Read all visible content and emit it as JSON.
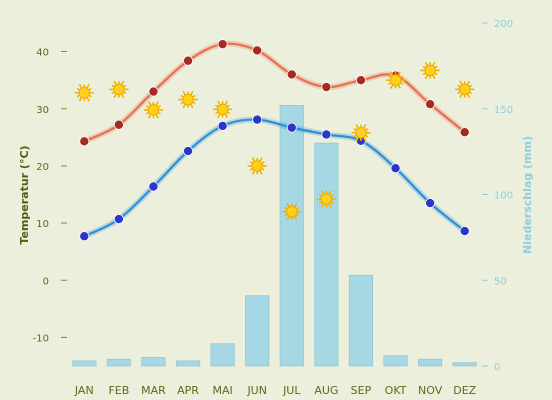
{
  "chart_data": {
    "type": "bar+line",
    "categories": [
      "JAN",
      "FEB",
      "MAR",
      "APR",
      "MAI",
      "JUN",
      "JUL",
      "AUG",
      "SEP",
      "OKT",
      "NOV",
      "DEZ"
    ],
    "y_left": {
      "label": "Temperatur (°C)",
      "ticks": [
        -10,
        0,
        10,
        20,
        30,
        40
      ],
      "range": [
        -15,
        45
      ]
    },
    "y_right": {
      "label": "Niederschlag (mm)",
      "ticks": [
        0,
        50,
        100,
        150,
        200
      ],
      "range": [
        0,
        200
      ]
    },
    "series": [
      {
        "kind": "line",
        "axis": "left",
        "color": "#e8704f",
        "marker": "#a52a24",
        "values": [
          24.3,
          27.2,
          33.0,
          38.4,
          41.3,
          40.2,
          36.0,
          33.8,
          35.0,
          35.8,
          30.8,
          25.9
        ]
      },
      {
        "kind": "line",
        "axis": "left",
        "color": "#2f8fd6",
        "marker": "#2b35c9",
        "values": [
          7.7,
          10.7,
          16.4,
          22.6,
          27.0,
          28.1,
          26.7,
          25.5,
          24.4,
          19.6,
          13.5,
          8.6
        ]
      },
      {
        "kind": "bar",
        "axis": "right",
        "color": "#a6d7e4",
        "values": [
          3,
          4,
          5,
          3,
          13,
          41,
          152,
          130,
          53,
          6,
          4,
          2
        ]
      }
    ],
    "sun_icons": {
      "axis": "left",
      "icon": "sun-icon",
      "values": [
        32.8,
        33.4,
        29.8,
        31.6,
        29.9,
        20.0,
        12.0,
        14.2,
        25.8,
        35.0,
        36.7,
        33.4
      ]
    }
  }
}
